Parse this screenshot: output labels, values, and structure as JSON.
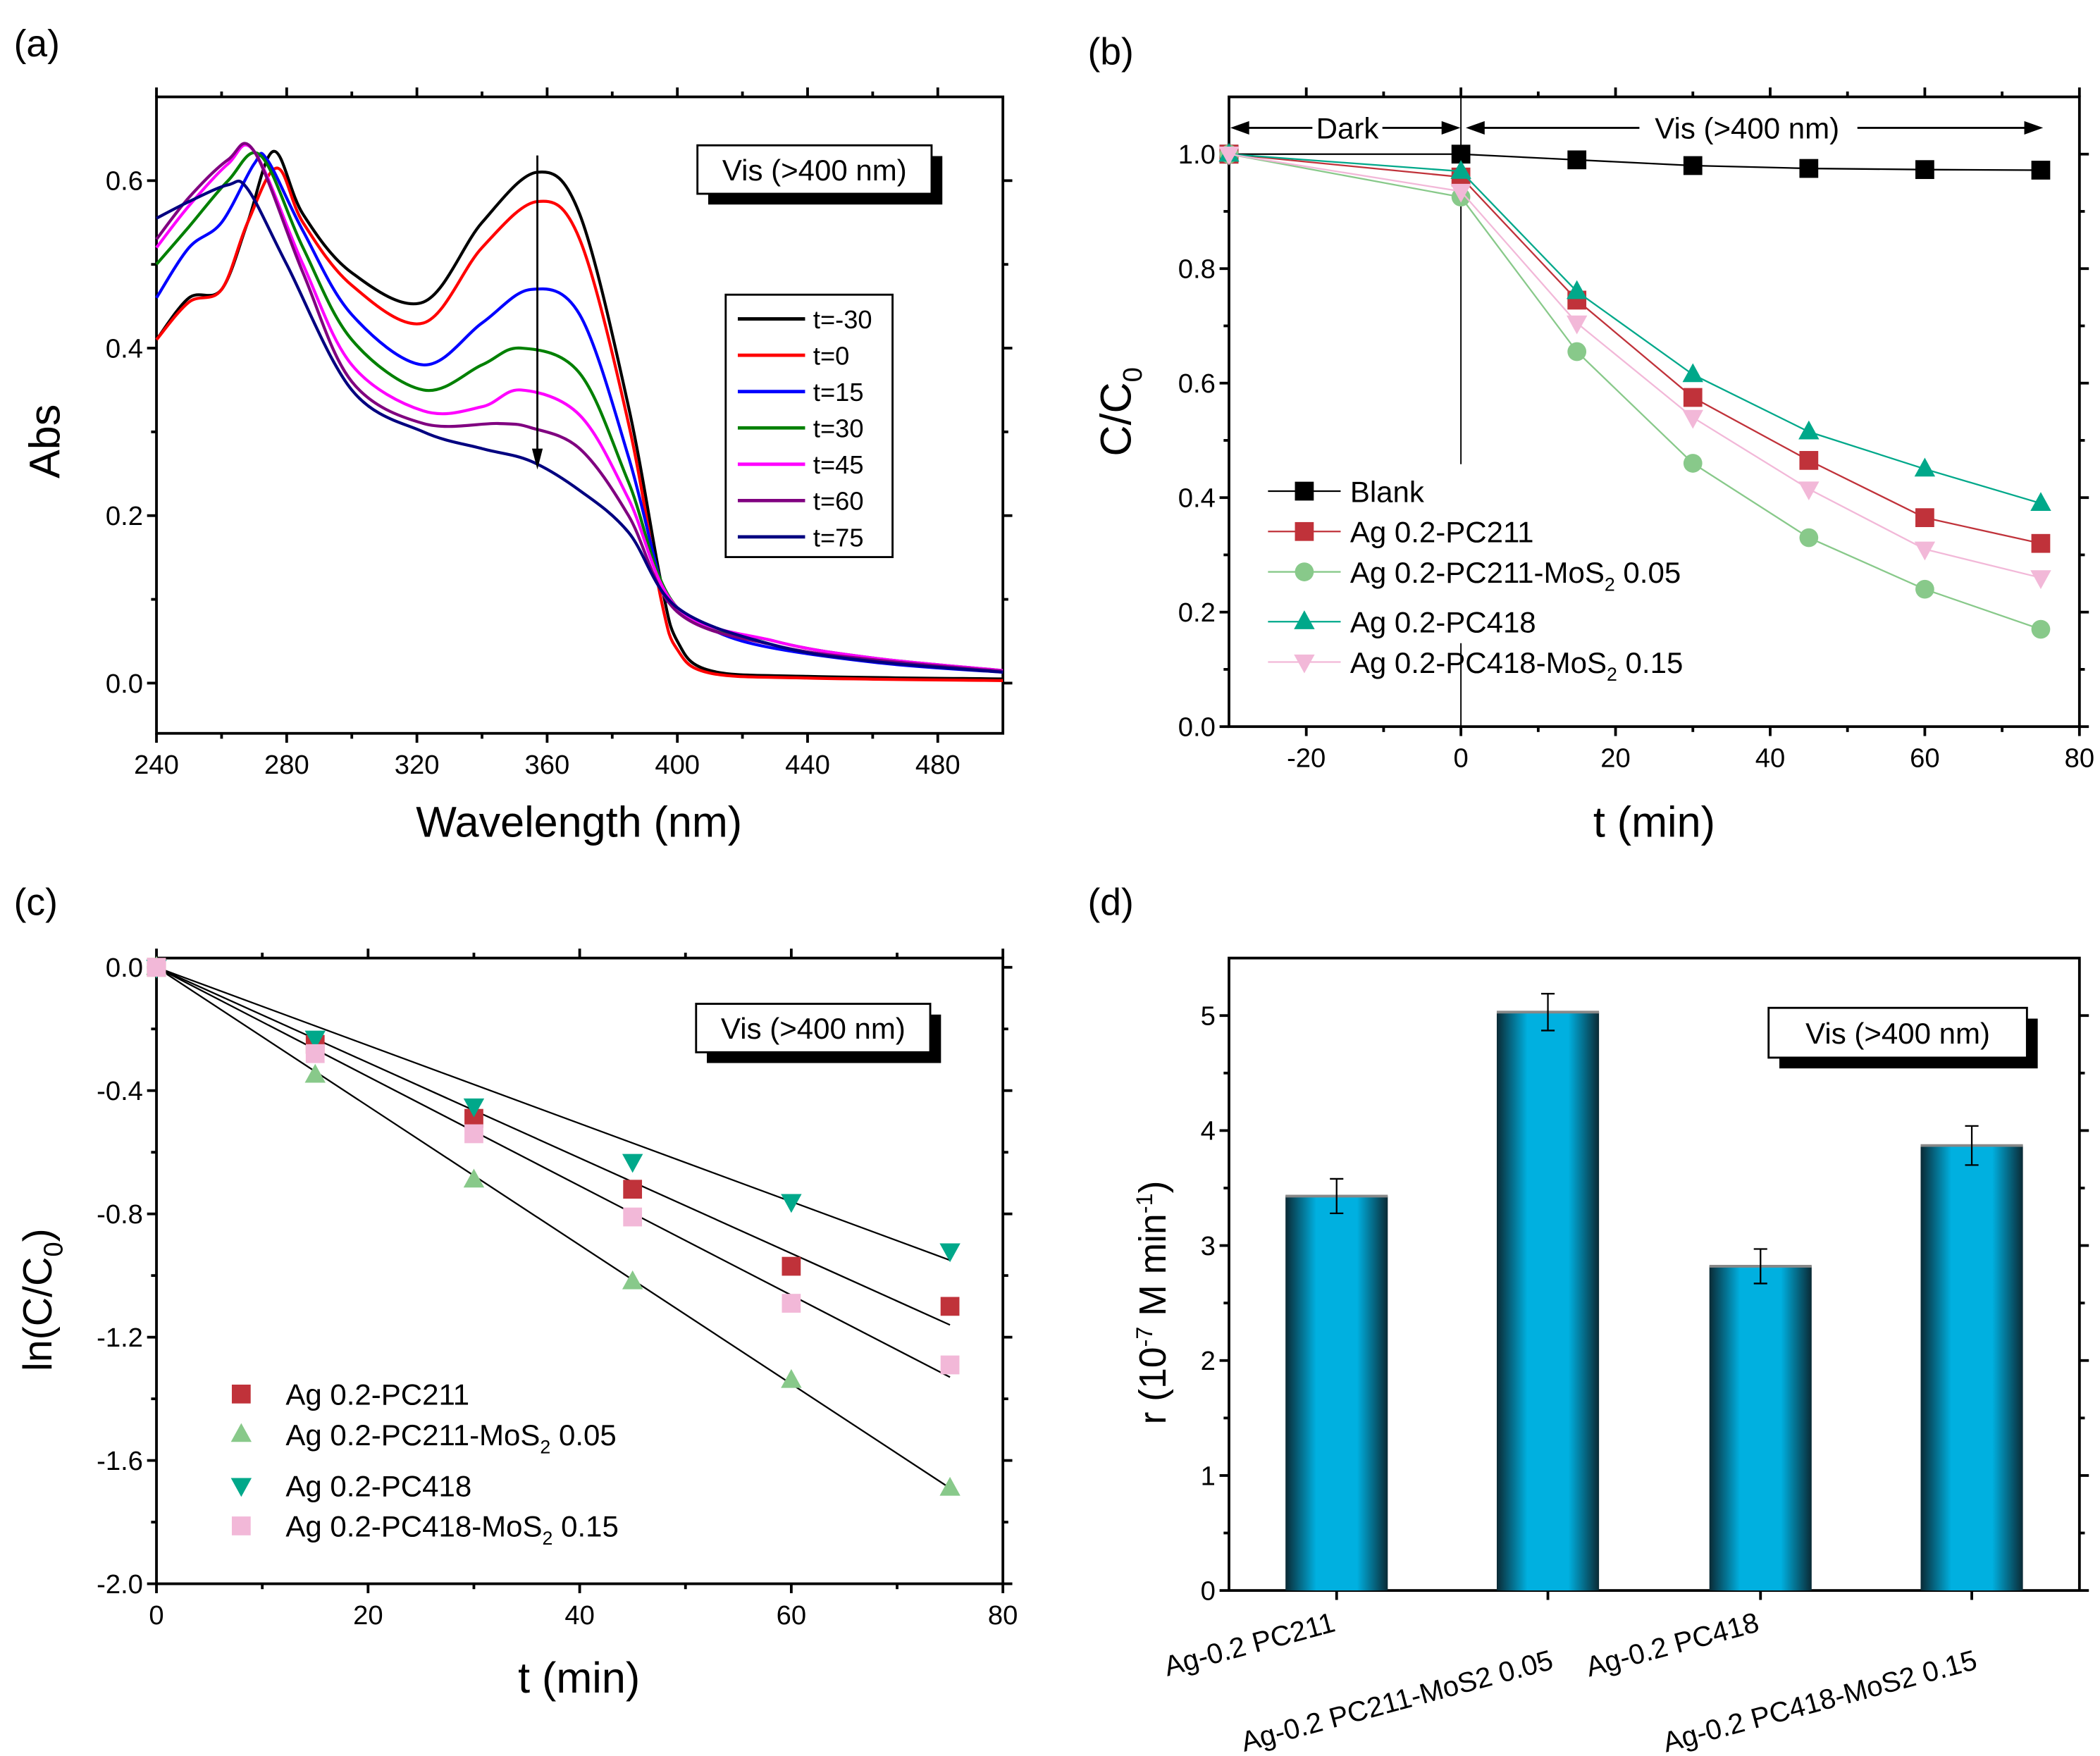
{
  "chart_data": [
    {
      "panel": "(a)",
      "type": "line",
      "xlabel": "Wavelength (nm)",
      "ylabel": "Abs",
      "xlim": [
        240,
        500
      ],
      "ylim": [
        -0.06,
        0.7
      ],
      "xticks": [
        240,
        280,
        320,
        360,
        400,
        440,
        480
      ],
      "yticks": [
        0.0,
        0.2,
        0.4,
        0.6
      ],
      "annotation": "Vis (>400 nm)",
      "legend": "right",
      "series": [
        {
          "name": "t=-30",
          "color": "#000000",
          "points": [
            [
              240,
              0.41
            ],
            [
              250,
              0.46
            ],
            [
              260,
              0.47
            ],
            [
              268,
              0.55
            ],
            [
              276,
              0.635
            ],
            [
              285,
              0.56
            ],
            [
              300,
              0.49
            ],
            [
              322,
              0.455
            ],
            [
              340,
              0.55
            ],
            [
              357,
              0.61
            ],
            [
              370,
              0.56
            ],
            [
              385,
              0.33
            ],
            [
              395,
              0.12
            ],
            [
              400,
              0.05
            ],
            [
              410,
              0.015
            ],
            [
              440,
              0.008
            ],
            [
              500,
              0.005
            ]
          ]
        },
        {
          "name": "t=0",
          "color": "#ff0000",
          "points": [
            [
              240,
              0.41
            ],
            [
              250,
              0.455
            ],
            [
              260,
              0.47
            ],
            [
              268,
              0.55
            ],
            [
              277,
              0.615
            ],
            [
              285,
              0.55
            ],
            [
              300,
              0.475
            ],
            [
              322,
              0.43
            ],
            [
              340,
              0.52
            ],
            [
              357,
              0.575
            ],
            [
              370,
              0.53
            ],
            [
              385,
              0.31
            ],
            [
              395,
              0.1
            ],
            [
              400,
              0.04
            ],
            [
              410,
              0.012
            ],
            [
              440,
              0.006
            ],
            [
              500,
              0.003
            ]
          ]
        },
        {
          "name": "t=15",
          "color": "#0000ff",
          "points": [
            [
              240,
              0.46
            ],
            [
              250,
              0.52
            ],
            [
              260,
              0.55
            ],
            [
              270,
              0.62
            ],
            [
              274,
              0.625
            ],
            [
              285,
              0.54
            ],
            [
              300,
              0.44
            ],
            [
              322,
              0.38
            ],
            [
              340,
              0.43
            ],
            [
              355,
              0.47
            ],
            [
              370,
              0.44
            ],
            [
              385,
              0.27
            ],
            [
              395,
              0.12
            ],
            [
              400,
              0.09
            ],
            [
              420,
              0.05
            ],
            [
              460,
              0.025
            ],
            [
              500,
              0.013
            ]
          ]
        },
        {
          "name": "t=30",
          "color": "#008000",
          "points": [
            [
              240,
              0.5
            ],
            [
              250,
              0.545
            ],
            [
              262,
              0.6
            ],
            [
              272,
              0.63
            ],
            [
              285,
              0.52
            ],
            [
              300,
              0.41
            ],
            [
              322,
              0.35
            ],
            [
              340,
              0.38
            ],
            [
              352,
              0.4
            ],
            [
              370,
              0.37
            ],
            [
              385,
              0.24
            ],
            [
              400,
              0.09
            ],
            [
              430,
              0.05
            ],
            [
              460,
              0.03
            ],
            [
              500,
              0.015
            ]
          ]
        },
        {
          "name": "t=45",
          "color": "#ff00ff",
          "points": [
            [
              240,
              0.52
            ],
            [
              250,
              0.57
            ],
            [
              262,
              0.62
            ],
            [
              270,
              0.635
            ],
            [
              285,
              0.5
            ],
            [
              300,
              0.38
            ],
            [
              322,
              0.325
            ],
            [
              340,
              0.33
            ],
            [
              352,
              0.35
            ],
            [
              370,
              0.32
            ],
            [
              385,
              0.22
            ],
            [
              400,
              0.09
            ],
            [
              430,
              0.05
            ],
            [
              460,
              0.03
            ],
            [
              500,
              0.015
            ]
          ]
        },
        {
          "name": "t=60",
          "color": "#800080",
          "points": [
            [
              240,
              0.53
            ],
            [
              250,
              0.58
            ],
            [
              262,
              0.625
            ],
            [
              270,
              0.635
            ],
            [
              285,
              0.49
            ],
            [
              300,
              0.36
            ],
            [
              322,
              0.31
            ],
            [
              345,
              0.31
            ],
            [
              355,
              0.305
            ],
            [
              370,
              0.28
            ],
            [
              385,
              0.2
            ],
            [
              400,
              0.085
            ],
            [
              430,
              0.045
            ],
            [
              460,
              0.028
            ],
            [
              500,
              0.014
            ]
          ]
        },
        {
          "name": "t=75",
          "color": "#000080",
          "points": [
            [
              240,
              0.555
            ],
            [
              250,
              0.575
            ],
            [
              262,
              0.595
            ],
            [
              268,
              0.59
            ],
            [
              280,
              0.5
            ],
            [
              300,
              0.35
            ],
            [
              322,
              0.3
            ],
            [
              340,
              0.28
            ],
            [
              355,
              0.265
            ],
            [
              370,
              0.23
            ],
            [
              385,
              0.18
            ],
            [
              400,
              0.09
            ],
            [
              430,
              0.045
            ],
            [
              460,
              0.026
            ],
            [
              500,
              0.013
            ]
          ]
        }
      ]
    },
    {
      "panel": "(b)",
      "type": "line",
      "xlabel": "t (min)",
      "ylabel": "C/C",
      "ylabel_sub": "0",
      "xlim": [
        -30,
        80
      ],
      "ylim": [
        0,
        1.1
      ],
      "xticks": [
        -20,
        0,
        20,
        40,
        60,
        80
      ],
      "yticks": [
        0.0,
        0.2,
        0.4,
        0.6,
        0.8,
        1.0
      ],
      "dark_label": "Dark",
      "vis_label": "Vis (>400 nm)",
      "legend": "bottom-left",
      "x": [
        -30,
        0,
        15,
        30,
        45,
        60,
        75
      ],
      "series": [
        {
          "name": "Blank",
          "sub": "",
          "suffix": "",
          "color": "#000000",
          "marker": "square",
          "values": [
            1.0,
            1.0,
            0.99,
            0.98,
            0.975,
            0.973,
            0.972
          ]
        },
        {
          "name": "Ag 0.2-PC211",
          "sub": "",
          "suffix": "",
          "color": "#c0323a",
          "marker": "square",
          "values": [
            1.0,
            0.96,
            0.745,
            0.575,
            0.465,
            0.365,
            0.32
          ]
        },
        {
          "name": "Ag 0.2-PC211-MoS",
          "sub": "2",
          "suffix": " 0.05",
          "color": "#88c98a",
          "marker": "circle",
          "values": [
            1.0,
            0.925,
            0.655,
            0.46,
            0.33,
            0.24,
            0.17
          ]
        },
        {
          "name": "Ag 0.2-PC418",
          "sub": "",
          "suffix": "",
          "color": "#00a88a",
          "marker": "triangle-up",
          "values": [
            1.0,
            0.97,
            0.76,
            0.615,
            0.515,
            0.45,
            0.39
          ]
        },
        {
          "name": "Ag 0.2-PC418-MoS",
          "sub": "2",
          "suffix": " 0.15",
          "color": "#f2b8d8",
          "marker": "triangle-down",
          "values": [
            1.0,
            0.935,
            0.705,
            0.54,
            0.415,
            0.31,
            0.26
          ]
        }
      ]
    },
    {
      "panel": "(c)",
      "type": "scatter",
      "xlabel": "t (min)",
      "ylabel": "ln(C/C",
      "ylabel_sub": "0",
      "ylabel_end": ")",
      "xlim": [
        0,
        80
      ],
      "ylim": [
        -2.0,
        0.03
      ],
      "xticks": [
        0,
        20,
        40,
        60,
        80
      ],
      "yticks": [
        0.0,
        -0.4,
        -0.8,
        -1.2,
        -1.6,
        -2.0
      ],
      "annotation": "Vis (>400 nm)",
      "legend": "bottom-left",
      "x": [
        0,
        15,
        30,
        45,
        60,
        75
      ],
      "series": [
        {
          "name": "Ag 0.2-PC211",
          "sub": "",
          "suffix": "",
          "color": "#c0323a",
          "marker": "square",
          "values": [
            0,
            -0.25,
            -0.49,
            -0.72,
            -0.97,
            -1.1
          ],
          "fit_slope": -0.01547
        },
        {
          "name": "Ag 0.2-PC211-MoS",
          "sub": "2",
          "suffix": " 0.05",
          "color": "#88c98a",
          "marker": "triangle-up",
          "values": [
            0,
            -0.35,
            -0.69,
            -1.02,
            -1.34,
            -1.69
          ],
          "fit_slope": -0.02253
        },
        {
          "name": "Ag 0.2-PC418",
          "sub": "",
          "suffix": "",
          "color": "#00a88a",
          "marker": "triangle-down",
          "values": [
            0,
            -0.23,
            -0.45,
            -0.63,
            -0.76,
            -0.92
          ],
          "fit_slope": -0.01267
        },
        {
          "name": "Ag 0.2-PC418-MoS",
          "sub": "2",
          "suffix": " 0.15",
          "color": "#f2b8d8",
          "marker": "square",
          "values": [
            0,
            -0.28,
            -0.54,
            -0.81,
            -1.09,
            -1.29
          ],
          "fit_slope": -0.01773
        }
      ]
    },
    {
      "panel": "(d)",
      "type": "bar",
      "ylabel": "r (10",
      "ylabel_sup": "-7",
      "ylabel_mid": " M min",
      "ylabel_sup2": "-1",
      "ylabel_end": ")",
      "ylim": [
        0,
        5.5
      ],
      "yticks": [
        0,
        1,
        2,
        3,
        4,
        5
      ],
      "annotation": "Vis (>400 nm)",
      "bar_color": "#00b0e0",
      "categories": [
        "Ag-0.2 PC211",
        "Ag-0.2 PC211-MoS2 0.05",
        "Ag-0.2 PC418",
        "Ag-0.2 PC418-MoS2 0.15"
      ],
      "values": [
        3.43,
        5.03,
        2.82,
        3.87
      ],
      "errors": [
        0.15,
        0.16,
        0.15,
        0.17
      ]
    }
  ]
}
